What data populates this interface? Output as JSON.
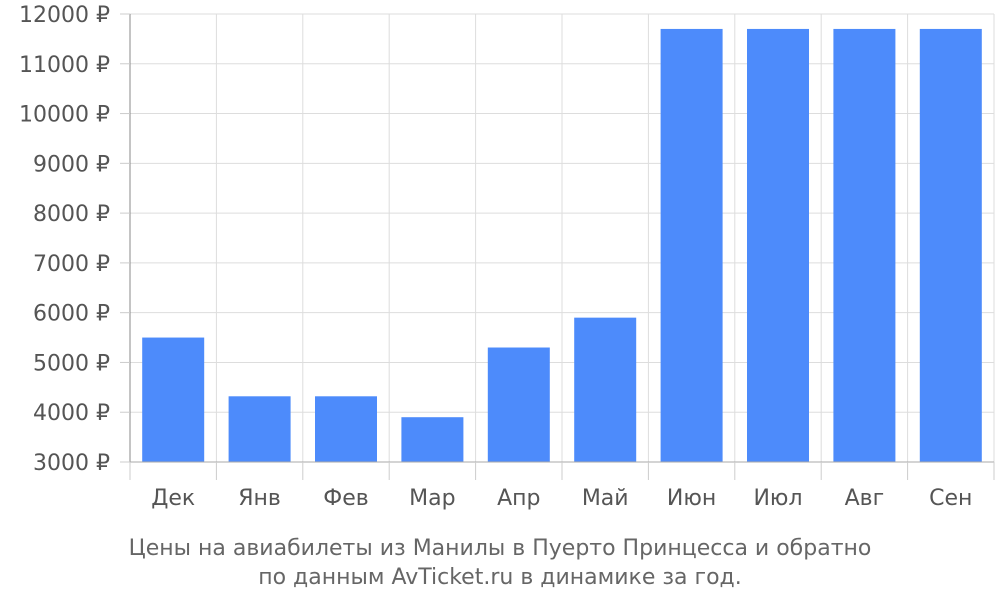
{
  "chart_data": {
    "type": "bar",
    "categories": [
      "Дек",
      "Янв",
      "Фев",
      "Мар",
      "Апр",
      "Май",
      "Июн",
      "Июл",
      "Авг",
      "Сен"
    ],
    "values": [
      5500,
      4320,
      4320,
      3900,
      5300,
      5900,
      11700,
      11700,
      11700,
      11700
    ],
    "ylim": [
      3000,
      12000
    ],
    "yticks": [
      3000,
      4000,
      5000,
      6000,
      7000,
      8000,
      9000,
      10000,
      11000,
      12000
    ],
    "ytick_suffix": " ₽",
    "grid": true,
    "bar_color": "#4d8bfb",
    "caption_line1": "Цены на авиабилеты из Манилы в Пуерто Принцесса и обратно",
    "caption_line2": "по данным AvTicket.ru в динамике за год."
  }
}
